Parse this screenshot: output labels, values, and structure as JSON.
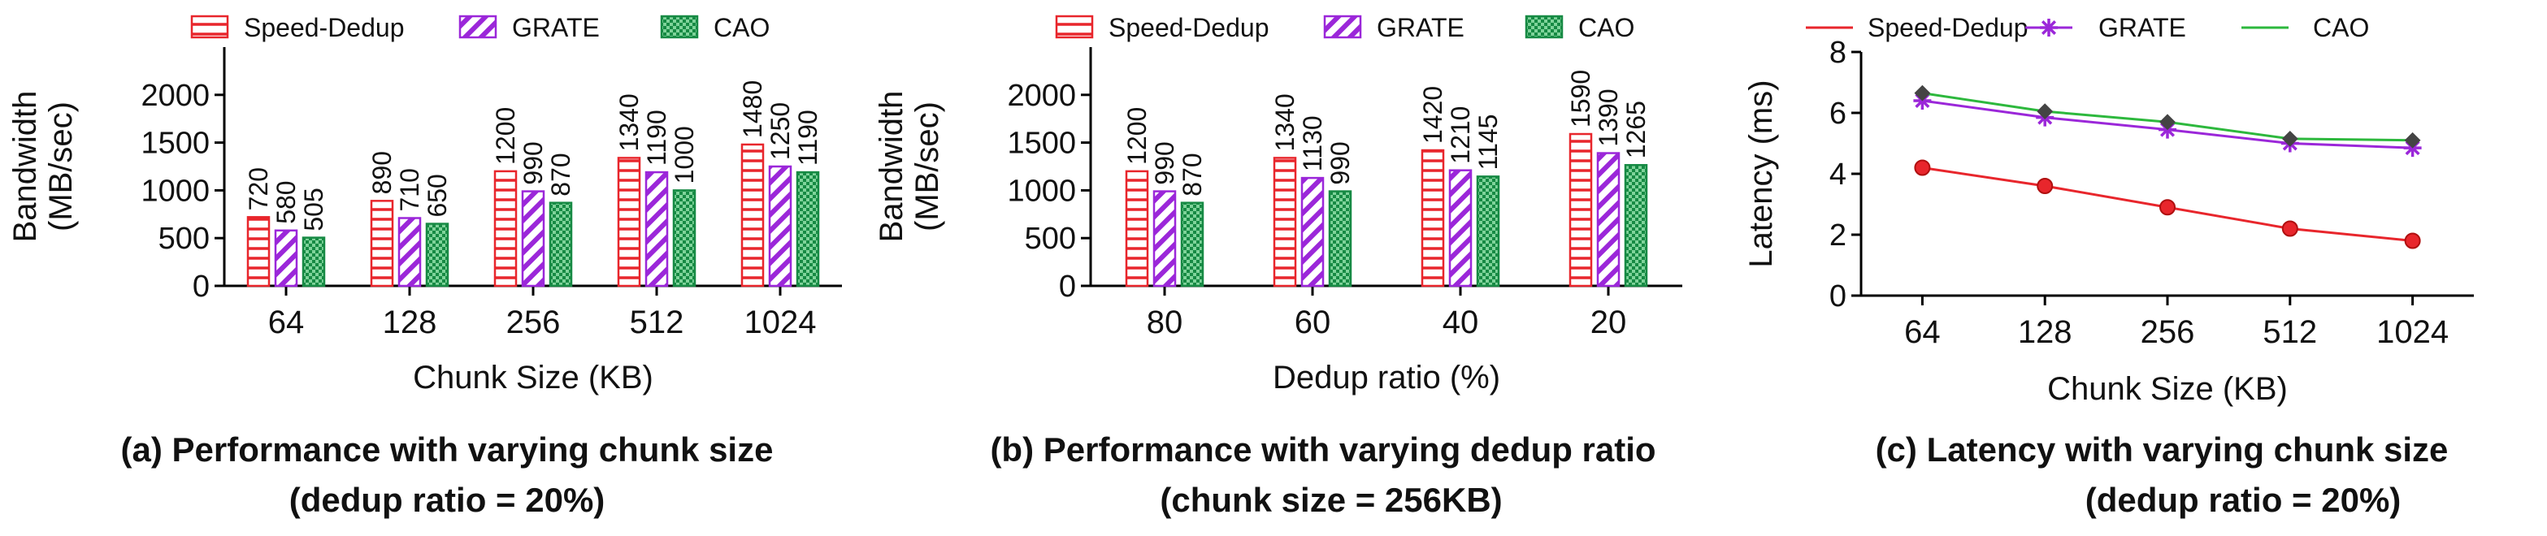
{
  "legend": {
    "speed_dedup": "Speed-Dedup",
    "grate": "GRATE",
    "cao": "CAO"
  },
  "colors": {
    "speed_dedup": "#e8262c",
    "grate": "#9b27d9",
    "cao": "#178a44",
    "cao_line": "#2db83d",
    "axis": "#000000"
  },
  "captions": [
    {
      "line1": "(a) Performance with varying chunk size",
      "line2": "(dedup ratio = 20%)"
    },
    {
      "line1": "(b) Performance with varying dedup ratio",
      "line2": "(chunk size = 256KB)"
    },
    {
      "line1": "(c) Latency with varying chunk size",
      "line2": "(dedup ratio = 20%)"
    }
  ],
  "chart_data": [
    {
      "type": "bar",
      "xlabel": "Chunk Size (KB)",
      "ylabel": [
        "Bandwidth",
        "(MB/sec)"
      ],
      "ylim": [
        0,
        2500
      ],
      "yticks": [
        0,
        500,
        1000,
        1500,
        2000
      ],
      "categories": [
        "64",
        "128",
        "256",
        "512",
        "1024"
      ],
      "series": [
        {
          "name": "Speed-Dedup",
          "values": [
            720,
            890,
            1200,
            1340,
            1480
          ]
        },
        {
          "name": "GRATE",
          "values": [
            580,
            710,
            990,
            1190,
            1250
          ]
        },
        {
          "name": "CAO",
          "values": [
            505,
            650,
            870,
            1000,
            1190
          ]
        }
      ]
    },
    {
      "type": "bar",
      "xlabel": "Dedup ratio (%)",
      "ylabel": [
        "Bandwidth",
        "(MB/sec)"
      ],
      "ylim": [
        0,
        2500
      ],
      "yticks": [
        0,
        500,
        1000,
        1500,
        2000
      ],
      "categories": [
        "80",
        "60",
        "40",
        "20"
      ],
      "series": [
        {
          "name": "Speed-Dedup",
          "values": [
            1200,
            1340,
            1420,
            1590
          ]
        },
        {
          "name": "GRATE",
          "values": [
            990,
            1130,
            1210,
            1390
          ]
        },
        {
          "name": "CAO",
          "values": [
            870,
            990,
            1145,
            1265
          ]
        }
      ]
    },
    {
      "type": "line",
      "xlabel": "Chunk Size (KB)",
      "ylabel": [
        "Latency (ms)"
      ],
      "ylim": [
        0,
        8
      ],
      "yticks": [
        0,
        2,
        4,
        6,
        8
      ],
      "categories": [
        "64",
        "128",
        "256",
        "512",
        "1024"
      ],
      "series": [
        {
          "name": "Speed-Dedup",
          "values": [
            4.2,
            3.6,
            2.9,
            2.2,
            1.8
          ]
        },
        {
          "name": "GRATE",
          "values": [
            6.4,
            5.85,
            5.45,
            5.0,
            4.85
          ]
        },
        {
          "name": "CAO",
          "values": [
            6.65,
            6.05,
            5.7,
            5.15,
            5.1
          ]
        }
      ]
    }
  ]
}
